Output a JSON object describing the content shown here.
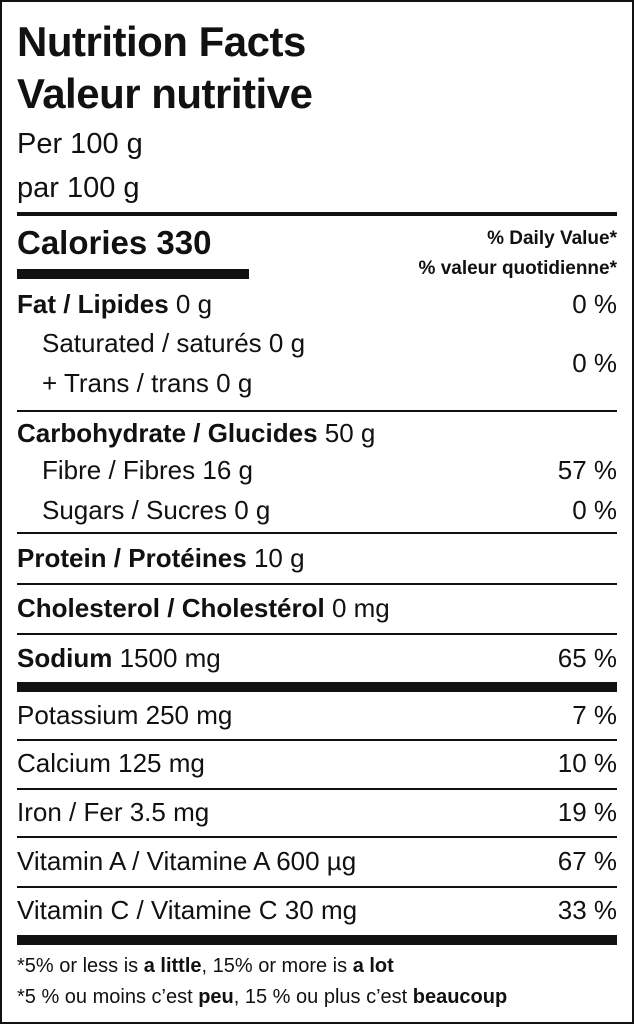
{
  "header": {
    "title_en": "Nutrition Facts",
    "title_fr": "Valeur nutritive",
    "serving_en": "Per 100 g",
    "serving_fr": "par 100 g"
  },
  "calories": {
    "label": "Calories",
    "value": "330"
  },
  "dv_header": {
    "en": "% Daily Value*",
    "fr": "% valeur quotidienne*"
  },
  "fat": {
    "label": "Fat / Lipides",
    "amount": "0 g",
    "dv": "0 %"
  },
  "saturated": {
    "label": "Saturated / saturés 0 g"
  },
  "trans": {
    "label": "+ Trans / trans 0 g"
  },
  "sat_trans_dv": "0 %",
  "carbohydrate": {
    "label": "Carbohydrate / Glucides",
    "amount": "50 g"
  },
  "fibre": {
    "label": "Fibre / Fibres 16 g",
    "dv": "57 %"
  },
  "sugars": {
    "label": "Sugars / Sucres 0 g",
    "dv": "0 %"
  },
  "protein": {
    "label": "Protein / Protéines",
    "amount": "10 g"
  },
  "cholesterol": {
    "label": "Cholesterol / Cholestérol",
    "amount": "0 mg"
  },
  "sodium": {
    "label": "Sodium",
    "amount": "1500 mg",
    "dv": "65 %"
  },
  "minerals": [
    {
      "label": "Potassium 250 mg",
      "dv": "7 %"
    },
    {
      "label": "Calcium 125 mg",
      "dv": "10 %"
    },
    {
      "label": "Iron / Fer 3.5 mg",
      "dv": "19 %"
    },
    {
      "label": "Vitamin A / Vitamine A 600 µg",
      "dv": "67 %"
    },
    {
      "label": "Vitamin C / Vitamine C 30 mg",
      "dv": "33 %"
    }
  ],
  "footnote": {
    "en": {
      "a": "*5% or less is ",
      "b": "a little",
      "c": ", 15% or more is ",
      "d": "a lot"
    },
    "fr": {
      "a": "*5 % ou moins c’est ",
      "b": "peu",
      "c": ", 15 % ou plus c’est ",
      "d": "beaucoup"
    }
  }
}
